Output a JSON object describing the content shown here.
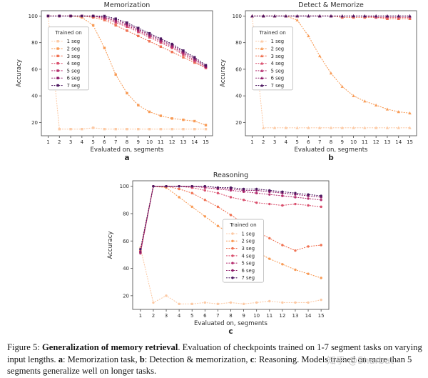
{
  "page": {
    "background": "#ffffff"
  },
  "caption": {
    "prefix": "Figure 5: ",
    "bold_title": "Generalization of memory retrieval",
    "middle": ". Evaluation of checkpoints trained on 1-7 segment tasks on varying input lengths. ",
    "a_label": "a",
    "a_text": ": Memorization task, ",
    "b_label": "b",
    "b_text": ": Detection & memorization, ",
    "c_label": "c",
    "c_text": ": Reasoning. Models trained on more than 5 segments generalize well on longer tasks."
  },
  "watermark": {
    "text": "知乎 @Sharbat",
    "color": "#c9c9c9"
  },
  "chart_data": [
    {
      "type": "line",
      "title": "Memorization",
      "xlabel": "Evaluated on, segments",
      "ylabel": "Accuracy",
      "sublabel": "a",
      "marker": "square",
      "x": [
        1,
        2,
        3,
        4,
        5,
        6,
        7,
        8,
        9,
        10,
        11,
        12,
        13,
        14,
        15
      ],
      "xlim": [
        0.4,
        15.6
      ],
      "ylim": [
        10,
        104
      ],
      "yticks": [
        20,
        40,
        60,
        80,
        100
      ],
      "legend": {
        "title": "Trained on",
        "x": 0.04,
        "y": 0.13
      },
      "series": [
        {
          "name": "1 seg",
          "color": "#fcc9a4",
          "values": [
            100,
            15,
            15,
            15,
            16,
            15,
            15,
            15,
            15,
            15,
            15,
            15,
            15,
            15,
            15
          ]
        },
        {
          "name": "2 seg",
          "color": "#f89b56",
          "values": [
            100,
            100,
            100,
            99,
            93,
            76,
            56,
            42,
            33,
            28,
            25,
            23,
            22,
            21,
            18
          ]
        },
        {
          "name": "3 seg",
          "color": "#f07050",
          "values": [
            100,
            100,
            100,
            100,
            99,
            97,
            93,
            89,
            85,
            81,
            77,
            73,
            69,
            65,
            61
          ]
        },
        {
          "name": "4 seg",
          "color": "#d94f6d",
          "values": [
            100,
            100,
            100,
            100,
            100,
            98,
            95,
            92,
            88,
            84,
            80,
            76,
            71,
            66,
            61
          ]
        },
        {
          "name": "5 seg",
          "color": "#b52f70",
          "values": [
            100,
            100,
            100,
            100,
            100,
            99,
            96,
            93,
            89,
            85,
            81,
            77,
            72,
            67,
            62
          ]
        },
        {
          "name": "6 seg",
          "color": "#8c1a68",
          "values": [
            100,
            100,
            100,
            100,
            100,
            99,
            97,
            94,
            90,
            86,
            82,
            78,
            73,
            68,
            62
          ]
        },
        {
          "name": "7 seg",
          "color": "#4c1760",
          "values": [
            100,
            100,
            100,
            100,
            100,
            100,
            98,
            95,
            91,
            87,
            83,
            79,
            74,
            69,
            63
          ]
        }
      ]
    },
    {
      "type": "line",
      "title": "Detect & Memorize",
      "xlabel": "Evaluated on, segments",
      "ylabel": "Accuracy",
      "sublabel": "b",
      "marker": "triangle",
      "x": [
        1,
        2,
        3,
        4,
        5,
        6,
        7,
        8,
        9,
        10,
        11,
        12,
        13,
        14,
        15
      ],
      "xlim": [
        0.4,
        15.6
      ],
      "ylim": [
        10,
        104
      ],
      "yticks": [
        20,
        40,
        60,
        80,
        100
      ],
      "legend": {
        "title": "Trained on",
        "x": 0.04,
        "y": 0.13
      },
      "series": [
        {
          "name": "1 seg",
          "color": "#fcc9a4",
          "values": [
            100,
            16,
            16,
            16,
            16,
            16,
            16,
            16,
            16,
            16,
            16,
            16,
            16,
            16,
            16
          ]
        },
        {
          "name": "2 seg",
          "color": "#f89b56",
          "values": [
            100,
            100,
            100,
            100,
            97,
            85,
            70,
            57,
            47,
            40,
            36,
            33,
            30,
            28,
            27
          ]
        },
        {
          "name": "3 seg",
          "color": "#f07050",
          "values": [
            100,
            100,
            100,
            100,
            100,
            100,
            100,
            100,
            99,
            99,
            99,
            99,
            98,
            98,
            98
          ]
        },
        {
          "name": "4 seg",
          "color": "#d94f6d",
          "values": [
            100,
            100,
            100,
            100,
            100,
            100,
            100,
            100,
            100,
            100,
            100,
            99,
            99,
            99,
            99
          ]
        },
        {
          "name": "5 seg",
          "color": "#b52f70",
          "values": [
            100,
            100,
            100,
            100,
            100,
            100,
            100,
            100,
            100,
            100,
            100,
            100,
            100,
            100,
            100
          ]
        },
        {
          "name": "6 seg",
          "color": "#8c1a68",
          "values": [
            100,
            100,
            100,
            100,
            100,
            100,
            100,
            100,
            100,
            100,
            100,
            100,
            100,
            100,
            100
          ]
        },
        {
          "name": "7 seg",
          "color": "#4c1760",
          "values": [
            100,
            100,
            100,
            100,
            100,
            100,
            100,
            100,
            100,
            100,
            100,
            100,
            100,
            100,
            100
          ]
        }
      ]
    },
    {
      "type": "line",
      "title": "Reasoning",
      "xlabel": "Evaluated on, segments",
      "ylabel": "Accuracy",
      "sublabel": "c",
      "marker": "circle",
      "x": [
        1,
        2,
        3,
        4,
        5,
        6,
        7,
        8,
        9,
        10,
        11,
        12,
        13,
        14,
        15
      ],
      "xlim": [
        0.4,
        15.6
      ],
      "ylim": [
        10,
        104
      ],
      "yticks": [
        20,
        40,
        60,
        80,
        100
      ],
      "legend": {
        "title": "Trained on",
        "x": 0.46,
        "y": 0.3
      },
      "series": [
        {
          "name": "1 seg",
          "color": "#fcc9a4",
          "values": [
            55,
            15,
            20,
            14,
            14,
            15,
            14,
            15,
            14,
            15,
            16,
            15,
            15,
            15,
            17
          ]
        },
        {
          "name": "2 seg",
          "color": "#f89b56",
          "values": [
            52,
            100,
            99,
            92,
            85,
            78,
            71,
            65,
            58,
            52,
            47,
            43,
            39,
            36,
            33
          ]
        },
        {
          "name": "3 seg",
          "color": "#f07050",
          "values": [
            53,
            100,
            100,
            98,
            95,
            90,
            85,
            79,
            73,
            67,
            62,
            57,
            53,
            56,
            57
          ]
        },
        {
          "name": "4 seg",
          "color": "#d94f6d",
          "values": [
            52,
            100,
            100,
            100,
            99,
            97,
            95,
            92,
            90,
            88,
            87,
            86,
            87,
            86,
            85
          ]
        },
        {
          "name": "5 seg",
          "color": "#b52f70",
          "values": [
            51,
            100,
            100,
            100,
            100,
            99,
            98,
            97,
            96,
            95,
            94,
            93,
            92,
            91,
            90
          ]
        },
        {
          "name": "6 seg",
          "color": "#8c1a68",
          "values": [
            52,
            100,
            100,
            100,
            100,
            100,
            99,
            98,
            97,
            97,
            96,
            95,
            94,
            93,
            92
          ]
        },
        {
          "name": "7 seg",
          "color": "#4c1760",
          "values": [
            54,
            100,
            100,
            100,
            100,
            100,
            99,
            99,
            98,
            98,
            97,
            96,
            95,
            94,
            93
          ]
        }
      ]
    }
  ]
}
